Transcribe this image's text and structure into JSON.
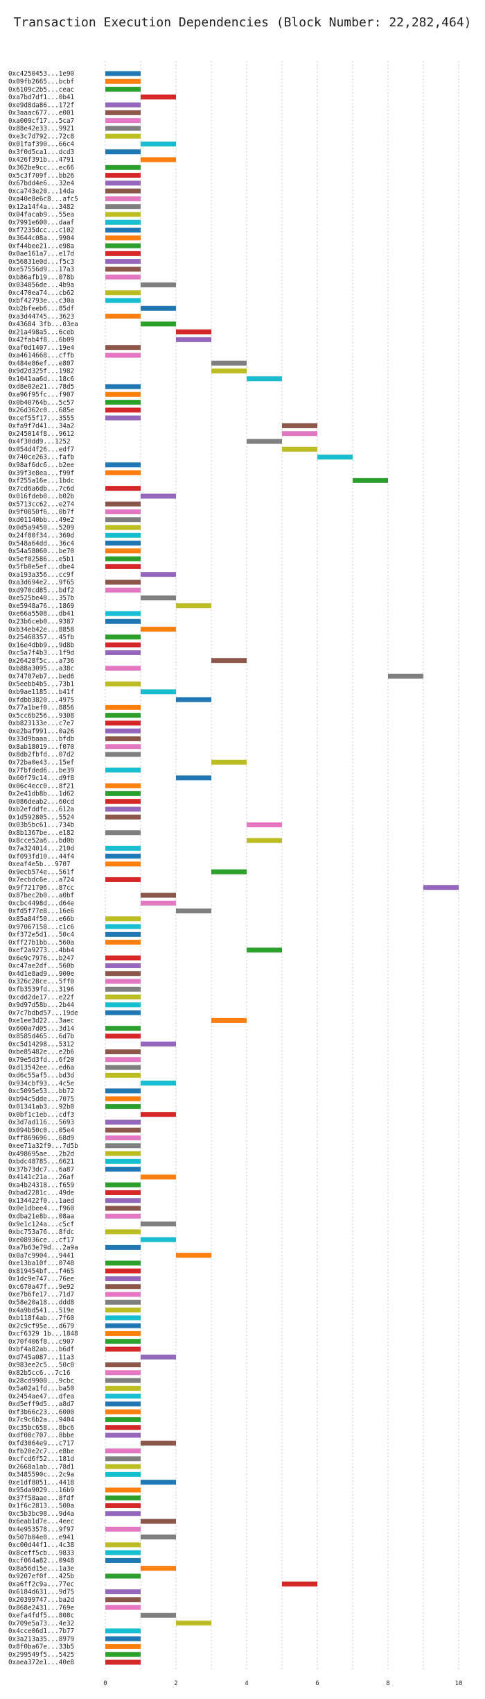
{
  "chart_data": {
    "type": "bar",
    "orientation": "horizontal",
    "title": "Transaction Execution Dependencies (Block Number: 22,282,464)",
    "xlabel": "",
    "ylabel": "",
    "xlim": [
      0,
      10.6
    ],
    "xticks": [
      "0",
      "2",
      "4",
      "6",
      "8",
      "10"
    ],
    "grid": "vertical dotted",
    "colors": [
      "#1f77b4",
      "#ff7f0e",
      "#2ca02c",
      "#d62728",
      "#9467bd",
      "#8c564b",
      "#e377c2",
      "#7f7f7f",
      "#bcbd22",
      "#17becf"
    ],
    "transactions": [
      {
        "tx": "0xc4250453...1e90",
        "start": 0,
        "end": 1
      },
      {
        "tx": "0x09fb2665...bcbf",
        "start": 0,
        "end": 1
      },
      {
        "tx": "0x6109c2b5...ceac",
        "start": 0,
        "end": 1
      },
      {
        "tx": "0xa7bd7df1...0b41",
        "start": 1,
        "end": 2
      },
      {
        "tx": "0xe9d8da86...172f",
        "start": 0,
        "end": 1
      },
      {
        "tx": "0x3aaac677...e001",
        "start": 0,
        "end": 1
      },
      {
        "tx": "0xa009cf17...5ca7",
        "start": 0,
        "end": 1
      },
      {
        "tx": "0x88e42e33...9921",
        "start": 0,
        "end": 1
      },
      {
        "tx": "0xe3c7d792...72c8",
        "start": 0,
        "end": 1
      },
      {
        "tx": "0x01faf390...66c4",
        "start": 1,
        "end": 2
      },
      {
        "tx": "0x3f0d5ca1...dcd3",
        "start": 0,
        "end": 1
      },
      {
        "tx": "0x426f391b...4791",
        "start": 1,
        "end": 2
      },
      {
        "tx": "0x362be9cc...ec66",
        "start": 0,
        "end": 1
      },
      {
        "tx": "0x5c3f709f...bb26",
        "start": 0,
        "end": 1
      },
      {
        "tx": "0x67bdd4e6...32e4",
        "start": 0,
        "end": 1
      },
      {
        "tx": "0xca743e20...14da",
        "start": 0,
        "end": 1
      },
      {
        "tx": "0xa40e8e6c8...afc5",
        "start": 0,
        "end": 1
      },
      {
        "tx": "0x12a14f4a...3482",
        "start": 0,
        "end": 1
      },
      {
        "tx": "0x04facab9...55ea",
        "start": 0,
        "end": 1
      },
      {
        "tx": "0x7991e600...daaf",
        "start": 0,
        "end": 1
      },
      {
        "tx": "0xf7235dcc...c102",
        "start": 0,
        "end": 1
      },
      {
        "tx": "0x3644c08a...9904",
        "start": 0,
        "end": 1
      },
      {
        "tx": "0xf44bee21...e98a",
        "start": 0,
        "end": 1
      },
      {
        "tx": "0x0ae161a7...e17d",
        "start": 0,
        "end": 1
      },
      {
        "tx": "0x56831e0d...f5c3",
        "start": 0,
        "end": 1
      },
      {
        "tx": "0xe57556d9...17a3",
        "start": 0,
        "end": 1
      },
      {
        "tx": "0xb86afb19...078b",
        "start": 0,
        "end": 1
      },
      {
        "tx": "0x034856de...4b9a",
        "start": 1,
        "end": 2
      },
      {
        "tx": "0xc470ea74...cb62",
        "start": 0,
        "end": 1
      },
      {
        "tx": "0xbf42793e...c30a",
        "start": 0,
        "end": 1
      },
      {
        "tx": "0xb2bfeeb6...85df",
        "start": 1,
        "end": 2
      },
      {
        "tx": "0xa3d44745...3623",
        "start": 0,
        "end": 1
      },
      {
        "tx": "0x43684 3fb...03ea",
        "start": 1,
        "end": 2
      },
      {
        "tx": "0x21a498a5...6ceb",
        "start": 2,
        "end": 3
      },
      {
        "tx": "0x42fab4f8...6b09",
        "start": 2,
        "end": 3
      },
      {
        "tx": "0xaf0d1407...19e4",
        "start": 0,
        "end": 1
      },
      {
        "tx": "0xa4614668...cffb",
        "start": 0,
        "end": 1
      },
      {
        "tx": "0x484e86ef...e807",
        "start": 3,
        "end": 4
      },
      {
        "tx": "0x9d2d325f...1982",
        "start": 3,
        "end": 4
      },
      {
        "tx": "0x1041aa6d...18c6",
        "start": 4,
        "end": 5
      },
      {
        "tx": "0xd8e02e21...78d5",
        "start": 0,
        "end": 1
      },
      {
        "tx": "0xa96f95fc...f907",
        "start": 0,
        "end": 1
      },
      {
        "tx": "0x0b40764b...5c57",
        "start": 0,
        "end": 1
      },
      {
        "tx": "0x26d362c0...685e",
        "start": 0,
        "end": 1
      },
      {
        "tx": "0xcef55f17...3555",
        "start": 0,
        "end": 1
      },
      {
        "tx": "0xfa9f7d41...34a2",
        "start": 5,
        "end": 6
      },
      {
        "tx": "0x245014f8...9612",
        "start": 5,
        "end": 6
      },
      {
        "tx": "0x4f30dd9...1252",
        "start": 4,
        "end": 5
      },
      {
        "tx": "0x054d4f26...edf7",
        "start": 5,
        "end": 6
      },
      {
        "tx": "0x740ce263...fafb",
        "start": 6,
        "end": 7
      },
      {
        "tx": "0x98af6dc6...b2ee",
        "start": 0,
        "end": 1
      },
      {
        "tx": "0x39f3e8ea...f99f",
        "start": 0,
        "end": 1
      },
      {
        "tx": "0xf255a16e...1bdc",
        "start": 7,
        "end": 8
      },
      {
        "tx": "0x7cd6a6db...7c6d",
        "start": 0,
        "end": 1
      },
      {
        "tx": "0x016fdeb0...b02b",
        "start": 1,
        "end": 2
      },
      {
        "tx": "0x5713cc62...e274",
        "start": 0,
        "end": 1
      },
      {
        "tx": "0x9f0850f6...0b7f",
        "start": 0,
        "end": 1
      },
      {
        "tx": "0xd01140bb...49e2",
        "start": 0,
        "end": 1
      },
      {
        "tx": "0x0d5a9450...5209",
        "start": 0,
        "end": 1
      },
      {
        "tx": "0x24f80f34...360d",
        "start": 0,
        "end": 1
      },
      {
        "tx": "0x548a64dd...36c4",
        "start": 0,
        "end": 1
      },
      {
        "tx": "0x54a58060...be70",
        "start": 0,
        "end": 1
      },
      {
        "tx": "0x5ef02586...e5b1",
        "start": 0,
        "end": 1
      },
      {
        "tx": "0x5fb0e5ef...dbe4",
        "start": 0,
        "end": 1
      },
      {
        "tx": "0xa193a356...cc9f",
        "start": 1,
        "end": 2
      },
      {
        "tx": "0xa3d694e2...9f65",
        "start": 0,
        "end": 1
      },
      {
        "tx": "0xd970cd85...bdf2",
        "start": 0,
        "end": 1
      },
      {
        "tx": "0xe525be40...357b",
        "start": 1,
        "end": 2
      },
      {
        "tx": "0xe5948a76...1869",
        "start": 2,
        "end": 3
      },
      {
        "tx": "0xe66a5508...db41",
        "start": 0,
        "end": 1
      },
      {
        "tx": "0x23b6ceb0...9387",
        "start": 0,
        "end": 1
      },
      {
        "tx": "0xb34eb42e...8858",
        "start": 1,
        "end": 2
      },
      {
        "tx": "0x25468357...45fb",
        "start": 0,
        "end": 1
      },
      {
        "tx": "0x16e4dbb9...9d8b",
        "start": 0,
        "end": 1
      },
      {
        "tx": "0xc5a7f4b3...1f9d",
        "start": 0,
        "end": 1
      },
      {
        "tx": "0x26428f5c...a736",
        "start": 3,
        "end": 4
      },
      {
        "tx": "0xb88a3095...a38c",
        "start": 0,
        "end": 1
      },
      {
        "tx": "0x74707eb7...bed6",
        "start": 8,
        "end": 9
      },
      {
        "tx": "0x5eebb4b5...73b1",
        "start": 0,
        "end": 1
      },
      {
        "tx": "0xb9ae1185...b41f",
        "start": 1,
        "end": 2
      },
      {
        "tx": "0xfdbb3820...4975",
        "start": 2,
        "end": 3
      },
      {
        "tx": "0x77a1bef0...8856",
        "start": 0,
        "end": 1
      },
      {
        "tx": "0x5cc6b256...9308",
        "start": 0,
        "end": 1
      },
      {
        "tx": "0xb823133e...c7e7",
        "start": 0,
        "end": 1
      },
      {
        "tx": "0xe2baf991...0a26",
        "start": 0,
        "end": 1
      },
      {
        "tx": "0x33d9baaa...bfdb",
        "start": 0,
        "end": 1
      },
      {
        "tx": "0x8ab18019...f070",
        "start": 0,
        "end": 1
      },
      {
        "tx": "0x8db2fbfd...07d2",
        "start": 0,
        "end": 1
      },
      {
        "tx": "0x72ba0e43...15ef",
        "start": 3,
        "end": 4
      },
      {
        "tx": "0x7fbfded6...be39",
        "start": 0,
        "end": 1
      },
      {
        "tx": "0x60f79c14...d9f8",
        "start": 2,
        "end": 3
      },
      {
        "tx": "0x06c4ecc0...8f21",
        "start": 0,
        "end": 1
      },
      {
        "tx": "0x2e41db8b...1d62",
        "start": 0,
        "end": 1
      },
      {
        "tx": "0x086deab2...60cd",
        "start": 0,
        "end": 1
      },
      {
        "tx": "0xb2efddfe...612a",
        "start": 0,
        "end": 1
      },
      {
        "tx": "0x1d592805...5524",
        "start": 0,
        "end": 1
      },
      {
        "tx": "0x03b5bc61...734b",
        "start": 4,
        "end": 5
      },
      {
        "tx": "0x8b1367be...e182",
        "start": 0,
        "end": 1
      },
      {
        "tx": "0x8cce52a6...bd0b",
        "start": 4,
        "end": 5
      },
      {
        "tx": "0x7a324014...210d",
        "start": 0,
        "end": 1
      },
      {
        "tx": "0xf093fd10...44f4",
        "start": 0,
        "end": 1
      },
      {
        "tx": "0xeaf4e5b...9707",
        "start": 0,
        "end": 1
      },
      {
        "tx": "0x9ecb574e...561f",
        "start": 3,
        "end": 4
      },
      {
        "tx": "0x7ecbdc6e...a724",
        "start": 0,
        "end": 1
      },
      {
        "tx": "0x9f721706...87cc",
        "start": 9,
        "end": 10
      },
      {
        "tx": "0x87bec2b0...a0bf",
        "start": 1,
        "end": 2
      },
      {
        "tx": "0xcbc4498d...d64e",
        "start": 1,
        "end": 2
      },
      {
        "tx": "0xfd5f77e8...16e6",
        "start": 2,
        "end": 3
      },
      {
        "tx": "0x85a84f50...e66b",
        "start": 0,
        "end": 1
      },
      {
        "tx": "0x97067158...c1c6",
        "start": 0,
        "end": 1
      },
      {
        "tx": "0xf372e5d1...50c4",
        "start": 0,
        "end": 1
      },
      {
        "tx": "0xff27b1bb...560a",
        "start": 0,
        "end": 1
      },
      {
        "tx": "0xef2a9273...4bb4",
        "start": 4,
        "end": 5
      },
      {
        "tx": "0x6e9c7976...b247",
        "start": 0,
        "end": 1
      },
      {
        "tx": "0xc47ae2df...560b",
        "start": 0,
        "end": 1
      },
      {
        "tx": "0x4d1e8ad9...900e",
        "start": 0,
        "end": 1
      },
      {
        "tx": "0x326c28ce...5ff0",
        "start": 0,
        "end": 1
      },
      {
        "tx": "0xfb3539fd...3196",
        "start": 0,
        "end": 1
      },
      {
        "tx": "0xcdd2de17...e22f",
        "start": 0,
        "end": 1
      },
      {
        "tx": "0x9d97d58b...2b44",
        "start": 0,
        "end": 1
      },
      {
        "tx": "0x7c7bdbd57...19de",
        "start": 0,
        "end": 1
      },
      {
        "tx": "0xe1ee3d22...3aec",
        "start": 3,
        "end": 4
      },
      {
        "tx": "0x600a7d05...3d14",
        "start": 0,
        "end": 1
      },
      {
        "tx": "0x8585d465...6d7b",
        "start": 0,
        "end": 1
      },
      {
        "tx": "0xc5d14298...5312",
        "start": 1,
        "end": 2
      },
      {
        "tx": "0xbe85482e...e2b6",
        "start": 0,
        "end": 1
      },
      {
        "tx": "0x79e5d3fd...6f20",
        "start": 0,
        "end": 1
      },
      {
        "tx": "0xd13542ee...ed6a",
        "start": 0,
        "end": 1
      },
      {
        "tx": "0xd6c55af5...bd3d",
        "start": 0,
        "end": 1
      },
      {
        "tx": "0x934cbf93...4c5e",
        "start": 1,
        "end": 2
      },
      {
        "tx": "0xc5095e53...bb72",
        "start": 0,
        "end": 1
      },
      {
        "tx": "0xb94c5dde...7075",
        "start": 0,
        "end": 1
      },
      {
        "tx": "0x01341ab3...92b0",
        "start": 0,
        "end": 1
      },
      {
        "tx": "0x0bf1c1eb...cdf3",
        "start": 1,
        "end": 2
      },
      {
        "tx": "0x3d7ad116...5693",
        "start": 0,
        "end": 1
      },
      {
        "tx": "0x094b50c0...05e4",
        "start": 0,
        "end": 1
      },
      {
        "tx": "0xff869696...68d9",
        "start": 0,
        "end": 1
      },
      {
        "tx": "0xee71a32f9...7d5b",
        "start": 0,
        "end": 1
      },
      {
        "tx": "0x498695ae...2b2d",
        "start": 0,
        "end": 1
      },
      {
        "tx": "0xbdc48785...6621",
        "start": 0,
        "end": 1
      },
      {
        "tx": "0x37b73dc7...6a87",
        "start": 0,
        "end": 1
      },
      {
        "tx": "0x4141c21a...26af",
        "start": 1,
        "end": 2
      },
      {
        "tx": "0xa4b24318...f659",
        "start": 0,
        "end": 1
      },
      {
        "tx": "0xbad2281c...49de",
        "start": 0,
        "end": 1
      },
      {
        "tx": "0x134422f0...1aed",
        "start": 0,
        "end": 1
      },
      {
        "tx": "0x0e1dbee4...f960",
        "start": 0,
        "end": 1
      },
      {
        "tx": "0xdba21e8b...08aa",
        "start": 0,
        "end": 1
      },
      {
        "tx": "0x9e1c124a...c5cf",
        "start": 1,
        "end": 2
      },
      {
        "tx": "0xbc753a76...8fdc",
        "start": 0,
        "end": 1
      },
      {
        "tx": "0xe08936ce...cf17",
        "start": 1,
        "end": 2
      },
      {
        "tx": "0xa7b63e79d...2a9a",
        "start": 0,
        "end": 1
      },
      {
        "tx": "0x0a7c9904...9441",
        "start": 2,
        "end": 3
      },
      {
        "tx": "0xe13ba10f...0748",
        "start": 0,
        "end": 1
      },
      {
        "tx": "0x819454bf...f465",
        "start": 0,
        "end": 1
      },
      {
        "tx": "0x1dc9e747...76ee",
        "start": 0,
        "end": 1
      },
      {
        "tx": "0xc670a47f...9e92",
        "start": 0,
        "end": 1
      },
      {
        "tx": "0xe7b6fe17...71d7",
        "start": 0,
        "end": 1
      },
      {
        "tx": "0x58e20a18...ddd8",
        "start": 0,
        "end": 1
      },
      {
        "tx": "0x4a9bd541...519e",
        "start": 0,
        "end": 1
      },
      {
        "tx": "0xb118f4ab...7f60",
        "start": 0,
        "end": 1
      },
      {
        "tx": "0x2c9cf95e...d679",
        "start": 0,
        "end": 1
      },
      {
        "tx": "0xcf6329 1b...1848",
        "start": 0,
        "end": 1
      },
      {
        "tx": "0x70f406f8...c907",
        "start": 0,
        "end": 1
      },
      {
        "tx": "0xbf4a82ab...b6df",
        "start": 0,
        "end": 1
      },
      {
        "tx": "0xd745a087...11a3",
        "start": 1,
        "end": 2
      },
      {
        "tx": "0x983ee2c5...50c8",
        "start": 0,
        "end": 1
      },
      {
        "tx": "0x82b5cc6...7c16",
        "start": 0,
        "end": 1
      },
      {
        "tx": "0x28cd9900...9cbc",
        "start": 0,
        "end": 1
      },
      {
        "tx": "0x5a02a1fd...ba50",
        "start": 0,
        "end": 1
      },
      {
        "tx": "0x2454ae47...dfea",
        "start": 0,
        "end": 1
      },
      {
        "tx": "0xd5eff9d5...a8d7",
        "start": 0,
        "end": 1
      },
      {
        "tx": "0xf3b66c23...6000",
        "start": 0,
        "end": 1
      },
      {
        "tx": "0x7c9c6b2a...9404",
        "start": 0,
        "end": 1
      },
      {
        "tx": "0xc35bc658...8bc6",
        "start": 0,
        "end": 1
      },
      {
        "tx": "0xdf08c707...8bbe",
        "start": 0,
        "end": 1
      },
      {
        "tx": "0xfd3064e9...c717",
        "start": 1,
        "end": 2
      },
      {
        "tx": "0xfb20e2c7...e8be",
        "start": 0,
        "end": 1
      },
      {
        "tx": "0xcfcd6f52...181d",
        "start": 0,
        "end": 1
      },
      {
        "tx": "0x2668a1ab...78d1",
        "start": 0,
        "end": 1
      },
      {
        "tx": "0x3485590c...2c9a",
        "start": 0,
        "end": 1
      },
      {
        "tx": "0xe1df8051...4418",
        "start": 1,
        "end": 2
      },
      {
        "tx": "0x95da9029...16b9",
        "start": 0,
        "end": 1
      },
      {
        "tx": "0x37f58aae...8fdf",
        "start": 0,
        "end": 1
      },
      {
        "tx": "0x1f6c2813...500a",
        "start": 0,
        "end": 1
      },
      {
        "tx": "0xc5b3bc98...9d4a",
        "start": 0,
        "end": 1
      },
      {
        "tx": "0x6eab1d7e...4eec",
        "start": 1,
        "end": 2
      },
      {
        "tx": "0x4e953578...9f97",
        "start": 0,
        "end": 1
      },
      {
        "tx": "0x507b04e0...e941",
        "start": 1,
        "end": 2
      },
      {
        "tx": "0xc00d44f1...4c38",
        "start": 0,
        "end": 1
      },
      {
        "tx": "0x8ceff5cb...9833",
        "start": 0,
        "end": 1
      },
      {
        "tx": "0xcf064a82...0948",
        "start": 0,
        "end": 1
      },
      {
        "tx": "0x8a56d15e...1a3e",
        "start": 1,
        "end": 2
      },
      {
        "tx": "0x9207ef0f...425b",
        "start": 0,
        "end": 1
      },
      {
        "tx": "0xa6ff2c9a...77ec",
        "start": 5,
        "end": 6
      },
      {
        "tx": "0x6184d631...9d75",
        "start": 0,
        "end": 1
      },
      {
        "tx": "0x20399747...ba2d",
        "start": 0,
        "end": 1
      },
      {
        "tx": "0x868e2431...769e",
        "start": 0,
        "end": 1
      },
      {
        "tx": "0xefa4fdf5...808c",
        "start": 1,
        "end": 2
      },
      {
        "tx": "0x709e5a73...4e32",
        "start": 2,
        "end": 3
      },
      {
        "tx": "0x4cce06d1...7b77",
        "start": 0,
        "end": 1
      },
      {
        "tx": "0x3a213a35...8979",
        "start": 0,
        "end": 1
      },
      {
        "tx": "0x8f0ba67e...33b5",
        "start": 0,
        "end": 1
      },
      {
        "tx": "0x299549f5...5425",
        "start": 0,
        "end": 1
      },
      {
        "tx": "0xaea372e1...40e8",
        "start": 0,
        "end": 1
      }
    ]
  }
}
